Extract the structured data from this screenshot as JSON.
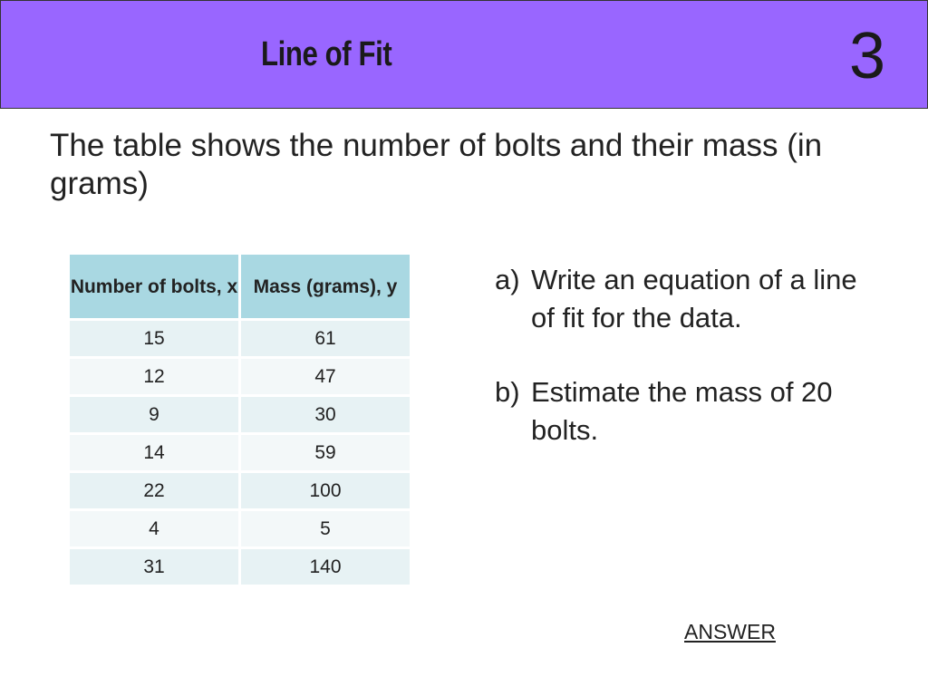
{
  "header": {
    "title": "Line of Fit",
    "slide_number": "3",
    "background_color": "#9966ff"
  },
  "intro": {
    "text": "The table shows the number of bolts and their mass (in grams)"
  },
  "table": {
    "headers": [
      "Number of bolts, x",
      "Mass (grams), y"
    ],
    "rows": [
      [
        "15",
        "61"
      ],
      [
        "12",
        "47"
      ],
      [
        "9",
        "30"
      ],
      [
        "14",
        "59"
      ],
      [
        "22",
        "100"
      ],
      [
        "4",
        "5"
      ],
      [
        "31",
        "140"
      ]
    ],
    "header_color": "#a9d8e2"
  },
  "questions": [
    {
      "letter": "a)",
      "text": "Write an equation of a line of fit for the data."
    },
    {
      "letter": "b)",
      "text": "Estimate the mass of 20 bolts."
    }
  ],
  "answer_link": "ANSWER"
}
